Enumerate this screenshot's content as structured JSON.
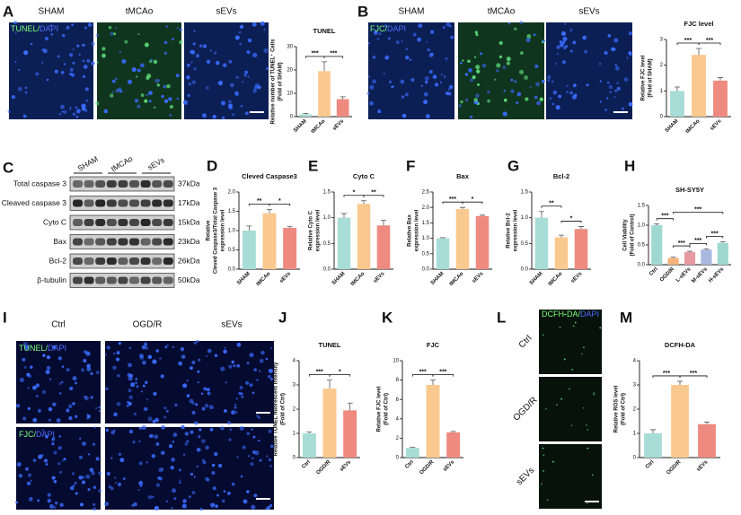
{
  "letters": [
    "A",
    "B",
    "C",
    "D",
    "E",
    "F",
    "G",
    "H",
    "I",
    "J",
    "K",
    "L",
    "M"
  ],
  "images": {
    "A": {
      "columns": [
        "SHAM",
        "tMCAo",
        "sEVs"
      ],
      "stain": [
        "TUNEL/",
        "DAPI"
      ]
    },
    "B": {
      "columns": [
        "SHAM",
        "tMCAo",
        "sEVs"
      ],
      "stain": [
        "FJC/",
        "DAPI"
      ]
    },
    "I": {
      "columns": [
        "Ctrl",
        "OGD/R",
        "sEVs"
      ],
      "rows": [
        [
          "TUNEL/",
          "DAPI"
        ],
        [
          "FJC/",
          "DAPI"
        ]
      ]
    },
    "L": {
      "rows": [
        "Ctrl",
        "OGD/R",
        "sEVs"
      ],
      "stain": [
        "DCFH-DA/",
        "DAPI"
      ]
    }
  },
  "blot": {
    "columns": [
      "SHAM",
      "tMCAo",
      "sEVs"
    ],
    "rows": [
      {
        "label": "Total caspase 3",
        "size": "37kDa"
      },
      {
        "label": "Cleaved caspase 3",
        "size": "17kDa"
      },
      {
        "label": "Cyto C",
        "size": "15kDa"
      },
      {
        "label": "Bax",
        "size": "23kDa"
      },
      {
        "label": "Bcl-2",
        "size": "26kDa"
      },
      {
        "label": "β-tubulin",
        "size": "50kDa"
      }
    ]
  },
  "chart_data": [
    {
      "type": "bar",
      "title": "TUNEL",
      "ylabel": [
        "Relative number of TUNEL⁺ Cells",
        "(Fold of SHAM)"
      ],
      "categories": [
        "SHAM",
        "tMCAo",
        "sEVs"
      ],
      "values": [
        1,
        19.5,
        7.5
      ],
      "errors": [
        0.4,
        4,
        1
      ],
      "colors": [
        "#a8dcd6",
        "#f9c98f",
        "#ee8a80"
      ],
      "ylim": [
        0,
        30
      ],
      "yticks": [
        0,
        10,
        20,
        30
      ],
      "annotations": [
        {
          "text": "***",
          "between": [
            "SHAM",
            "tMCAo"
          ]
        },
        {
          "text": "***",
          "between": [
            "tMCAo",
            "sEVs"
          ]
        }
      ]
    },
    {
      "type": "bar",
      "title": "FJC level",
      "ylabel": [
        "Relative FJC level",
        "(Fold of SHAM)"
      ],
      "categories": [
        "SHAM",
        "tMCAo",
        "sEVs"
      ],
      "values": [
        1.0,
        2.4,
        1.4
      ],
      "errors": [
        0.15,
        0.25,
        0.12
      ],
      "colors": [
        "#a8dcd6",
        "#f9c98f",
        "#ee8a80"
      ],
      "ylim": [
        0,
        3
      ],
      "yticks": [
        0,
        1,
        2,
        3
      ],
      "annotations": [
        {
          "text": "***",
          "between": [
            "SHAM",
            "tMCAo"
          ]
        },
        {
          "text": "***",
          "between": [
            "tMCAo",
            "sEVs"
          ]
        }
      ]
    },
    {
      "type": "bar",
      "title": "Cleved Caspase3",
      "ylabel": [
        "Relative",
        "Cleved Caspase3/Total Caspase 3",
        "expression level"
      ],
      "categories": [
        "SHAM",
        "tMCAo",
        "sEVs"
      ],
      "values": [
        1.0,
        1.45,
        1.07
      ],
      "errors": [
        0.12,
        0.1,
        0.04
      ],
      "colors": [
        "#a8dcd6",
        "#f9c98f",
        "#ee8a80"
      ],
      "ylim": [
        0,
        2
      ],
      "yticks": [
        {
          "value": 0,
          "label": "0.0"
        },
        0.5,
        {
          "value": 1,
          "label": "1.0"
        },
        1.5,
        {
          "value": 2,
          "label": "2.0"
        }
      ],
      "annotations": [
        {
          "text": "**",
          "between": [
            "SHAM",
            "tMCAo"
          ]
        },
        {
          "text": "*",
          "between": [
            "tMCAo",
            "sEVs"
          ]
        }
      ]
    },
    {
      "type": "bar",
      "title": "Cyto C",
      "ylabel": [
        "Relative Cyto C",
        "expression level"
      ],
      "categories": [
        "SHAM",
        "tMCAo",
        "sEVs"
      ],
      "values": [
        1.0,
        1.27,
        0.85
      ],
      "errors": [
        0.08,
        0.06,
        0.1
      ],
      "colors": [
        "#a8dcd6",
        "#f9c98f",
        "#ee8a80"
      ],
      "ylim": [
        0,
        1.5
      ],
      "yticks": [
        {
          "value": 0,
          "label": "0.0"
        },
        0.5,
        {
          "value": 1,
          "label": "1.0"
        },
        1.5
      ],
      "annotations": [
        {
          "text": "*",
          "between": [
            "SHAM",
            "tMCAo"
          ]
        },
        {
          "text": "**",
          "between": [
            "tMCAo",
            "sEVs"
          ]
        }
      ]
    },
    {
      "type": "bar",
      "title": "Bax",
      "ylabel": [
        "Relative Bax",
        "expression level"
      ],
      "categories": [
        "SHAM",
        "tMCAo",
        "sEVs"
      ],
      "values": [
        1.0,
        1.95,
        1.72
      ],
      "errors": [
        0.02,
        0.05,
        0.03
      ],
      "colors": [
        "#a8dcd6",
        "#f9c98f",
        "#ee8a80"
      ],
      "ylim": [
        0,
        2.5
      ],
      "yticks": [
        {
          "value": 0,
          "label": "0.0"
        },
        0.5,
        {
          "value": 1,
          "label": "1.0"
        },
        1.5,
        {
          "value": 2,
          "label": "2.0"
        },
        2.5
      ],
      "annotations": [
        {
          "text": "***",
          "between": [
            "SHAM",
            "tMCAo"
          ]
        },
        {
          "text": "*",
          "between": [
            "tMCAo",
            "sEVs"
          ]
        }
      ]
    },
    {
      "type": "bar",
      "title": "Bcl-2",
      "ylabel": [
        "Relative Bcl-2",
        "expression level"
      ],
      "categories": [
        "SHAM",
        "tMCAo",
        "sEVs"
      ],
      "values": [
        1.0,
        0.62,
        0.78
      ],
      "errors": [
        0.12,
        0.04,
        0.05
      ],
      "colors": [
        "#a8dcd6",
        "#f9c98f",
        "#ee8a80"
      ],
      "ylim": [
        0,
        1.5
      ],
      "yticks": [
        {
          "value": 0,
          "label": "0.0"
        },
        0.5,
        {
          "value": 1,
          "label": "1.0"
        },
        1.5
      ],
      "annotations": [
        {
          "text": "**",
          "between": [
            "SHAM",
            "tMCAo"
          ]
        },
        {
          "text": "*",
          "between": [
            "tMCAo",
            "sEVs"
          ]
        }
      ]
    },
    {
      "type": "bar",
      "title": "SH-SY5Y",
      "ylabel": [
        "Cell Viability",
        "(Fold of Control)"
      ],
      "categories": [
        "Ctrl",
        "OGD/R",
        "L-sEVs",
        "M-sEVs",
        "H-sEVs"
      ],
      "values": [
        1.0,
        0.17,
        0.32,
        0.38,
        0.55
      ],
      "errors": [
        0.03,
        0.02,
        0.02,
        0.02,
        0.03
      ],
      "colors": [
        "#9fd8d0",
        "#f4b27a",
        "#e99aa0",
        "#a8b8e0",
        "#9fd8d0"
      ],
      "ylim": [
        0,
        1.5
      ],
      "yticks": [
        {
          "value": 0,
          "label": "0.0"
        },
        0.5,
        {
          "value": 1,
          "label": "1.0"
        },
        1.5
      ],
      "annotations": [
        {
          "text": "***",
          "between": [
            "Ctrl",
            "OGD/R"
          ]
        },
        {
          "text": "***",
          "between": [
            "OGD/R",
            "L-sEVs"
          ]
        },
        {
          "text": "***",
          "between": [
            "L-sEVs",
            "M-sEVs"
          ]
        },
        {
          "text": "***",
          "between": [
            "M-sEVs",
            "H-sEVs"
          ]
        },
        {
          "text": "***",
          "between": [
            "OGD/R",
            "H-sEVs"
          ]
        }
      ]
    },
    {
      "type": "bar",
      "title": "TUNEL",
      "ylabel": [
        "Relative TUNEL fluorescent intensity",
        "(Fold of Ctrl)"
      ],
      "categories": [
        "Ctrl",
        "OGD/R",
        "sEVs"
      ],
      "values": [
        1.0,
        2.85,
        1.95
      ],
      "errors": [
        0.05,
        0.35,
        0.3
      ],
      "colors": [
        "#a8dcd6",
        "#f9c98f",
        "#ee8a80"
      ],
      "ylim": [
        0,
        4
      ],
      "yticks": [
        0,
        1,
        2,
        3,
        4
      ],
      "annotations": [
        {
          "text": "***",
          "between": [
            "Ctrl",
            "OGD/R"
          ]
        },
        {
          "text": "*",
          "between": [
            "OGD/R",
            "sEVs"
          ]
        }
      ]
    },
    {
      "type": "bar",
      "title": "FJC",
      "ylabel": [
        "Relative FJC level",
        "(Fold of Ctrl)"
      ],
      "categories": [
        "Ctrl",
        "OGD/R",
        "sEVs"
      ],
      "values": [
        1.0,
        7.5,
        2.6
      ],
      "errors": [
        0.05,
        0.5,
        0.1
      ],
      "colors": [
        "#a8dcd6",
        "#f9c98f",
        "#ee8a80"
      ],
      "ylim": [
        0,
        10
      ],
      "yticks": [
        0,
        2,
        4,
        6,
        8,
        10
      ],
      "annotations": [
        {
          "text": "***",
          "between": [
            "Ctrl",
            "OGD/R"
          ]
        },
        {
          "text": "***",
          "between": [
            "OGD/R",
            "sEVs"
          ]
        }
      ]
    },
    {
      "type": "bar",
      "title": "DCFH-DA",
      "ylabel": [
        "Relative ROS level",
        "(Fold of Ctrl)"
      ],
      "categories": [
        "Ctrl",
        "OGD/R",
        "sEVs"
      ],
      "values": [
        1.0,
        3.0,
        1.38
      ],
      "errors": [
        0.15,
        0.15,
        0.08
      ],
      "colors": [
        "#a8dcd6",
        "#f9c98f",
        "#ee8a80"
      ],
      "ylim": [
        0,
        4
      ],
      "yticks": [
        0,
        1,
        2,
        3,
        4
      ],
      "annotations": [
        {
          "text": "***",
          "between": [
            "Ctrl",
            "OGD/R"
          ]
        },
        {
          "text": "***",
          "between": [
            "OGD/R",
            "sEVs"
          ]
        }
      ]
    }
  ]
}
